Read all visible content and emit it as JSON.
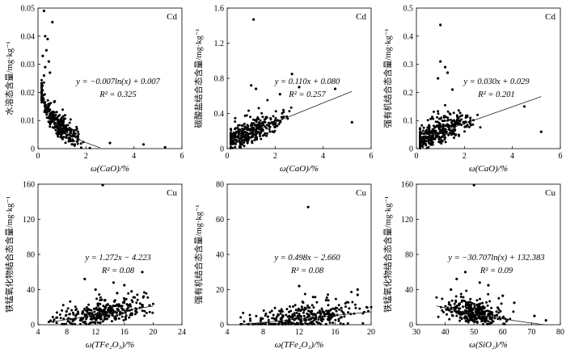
{
  "figure": {
    "rows": [
      {
        "label": "Cd",
        "ylabels": [
          "水溶态含量/mg·kg⁻¹",
          "碳酸盐结合态含量/mg·kg⁻¹",
          "强有机结合态含量/mg·kg⁻¹"
        ]
      },
      {
        "label": "Cu",
        "ylabels": [
          "铁锰氧化物结合态含量/mg·kg⁻¹",
          "强有机结合态含量/mg·kg⁻¹",
          "铁锰氧化物结合态含量/mg·kg⁻¹"
        ]
      }
    ]
  },
  "chart_data": [
    {
      "type": "scatter",
      "element": "Cd",
      "ylabel": "水溶态含量/mg·kg⁻¹",
      "xlabel": "ω(CaO)/%",
      "xlim": [
        0,
        6
      ],
      "ylim": [
        0,
        0.05
      ],
      "xticks": [
        "0",
        "2",
        "4",
        "6"
      ],
      "yticks": [
        "0",
        "0.01",
        "0.02",
        "0.03",
        "0.04",
        "0.05"
      ],
      "equation": "y = −0.007ln(x) + 0.007",
      "r2": "R² = 0.325",
      "fit": {
        "kind": "log",
        "a": -0.007,
        "b": 0.007
      },
      "cloud": {
        "x": [
          0.15,
          2.6
        ],
        "xMean": 0.8,
        "spread": 0.5,
        "n": 320,
        "seed": 11
      },
      "points": [
        [
          0.25,
          0.049
        ],
        [
          0.6,
          0.045
        ],
        [
          0.3,
          0.04
        ],
        [
          0.4,
          0.039
        ],
        [
          0.35,
          0.035
        ],
        [
          0.2,
          0.033
        ],
        [
          0.45,
          0.031
        ],
        [
          0.3,
          0.029
        ],
        [
          0.5,
          0.027
        ],
        [
          0.25,
          0.026
        ],
        [
          4.4,
          0.0015
        ],
        [
          5.3,
          0.0005
        ],
        [
          3.0,
          0.002
        ]
      ]
    },
    {
      "type": "scatter",
      "element": "Cd",
      "ylabel": "碳酸盐结合态含量/mg·kg⁻¹",
      "xlabel": "ω(CaO)/%",
      "xlim": [
        0,
        6
      ],
      "ylim": [
        0,
        1.6
      ],
      "xticks": [
        "0",
        "2",
        "4",
        "6"
      ],
      "yticks": [
        "0",
        "0.4",
        "0.8",
        "1.2",
        "1.6"
      ],
      "equation": "y = 0.110x + 0.080",
      "r2": "R² = 0.257",
      "fit": {
        "kind": "linear",
        "a": 0.11,
        "b": 0.08,
        "range": [
          0.1,
          5.2
        ]
      },
      "cloud": {
        "x": [
          0.15,
          3.0
        ],
        "xMean": 1.0,
        "spread": 0.6,
        "n": 320,
        "seed": 23
      },
      "points": [
        [
          1.1,
          1.47
        ],
        [
          2.7,
          0.85
        ],
        [
          3.0,
          0.7
        ],
        [
          4.5,
          0.68
        ],
        [
          5.2,
          0.3
        ],
        [
          1.0,
          0.72
        ],
        [
          1.2,
          0.68
        ],
        [
          2.2,
          0.62
        ]
      ]
    },
    {
      "type": "scatter",
      "element": "Cd",
      "ylabel": "强有机结合态含量/mg·kg⁻¹",
      "xlabel": "ω(CaO)/%",
      "xlim": [
        0,
        6
      ],
      "ylim": [
        0,
        0.5
      ],
      "xticks": [
        "0",
        "2",
        "4",
        "6"
      ],
      "yticks": [
        "0",
        "0.1",
        "0.2",
        "0.3",
        "0.4",
        "0.5"
      ],
      "equation": "y = 0.030x + 0.029",
      "r2": "R² = 0.201",
      "fit": {
        "kind": "linear",
        "a": 0.03,
        "b": 0.029,
        "range": [
          0.1,
          5.2
        ]
      },
      "cloud": {
        "x": [
          0.15,
          3.0
        ],
        "xMean": 1.0,
        "spread": 0.6,
        "n": 320,
        "seed": 37
      },
      "points": [
        [
          1.0,
          0.44
        ],
        [
          1.0,
          0.31
        ],
        [
          1.2,
          0.29
        ],
        [
          1.3,
          0.27
        ],
        [
          4.5,
          0.15
        ],
        [
          5.2,
          0.06
        ],
        [
          0.9,
          0.25
        ],
        [
          1.5,
          0.21
        ]
      ]
    },
    {
      "type": "scatter",
      "element": "Cu",
      "ylabel": "铁锰氧化物结合态含量/mg·kg⁻¹",
      "xlabel": "ω(TFe₂O₃)/%",
      "xlim": [
        4,
        24
      ],
      "ylim": [
        0,
        160
      ],
      "xticks": [
        "4",
        "8",
        "12",
        "16",
        "20",
        "24"
      ],
      "yticks": [
        "0",
        "40",
        "80",
        "120",
        "160"
      ],
      "equation": "y = 1.272x − 4.223",
      "r2": "R² = 0.08",
      "fit": {
        "kind": "linear",
        "a": 1.272,
        "b": -4.223,
        "range": [
          5.5,
          20
        ]
      },
      "cloud": {
        "x": [
          5.5,
          20
        ],
        "xMean": 13,
        "spread": 3,
        "n": 320,
        "seed": 51
      },
      "points": [
        [
          13,
          159
        ],
        [
          10.5,
          52
        ],
        [
          18.5,
          60
        ],
        [
          14.5,
          48
        ],
        [
          16,
          45
        ],
        [
          12,
          40
        ],
        [
          17,
          38
        ],
        [
          15,
          36
        ],
        [
          19.5,
          22
        ]
      ]
    },
    {
      "type": "scatter",
      "element": "Cu",
      "ylabel": "强有机结合态含量/mg·kg⁻¹",
      "xlabel": "ω(TFe₂O₃)/%",
      "xlim": [
        4,
        20
      ],
      "ylim": [
        0,
        80
      ],
      "xticks": [
        "4",
        "8",
        "12",
        "16",
        "20"
      ],
      "yticks": [
        "0",
        "20",
        "40",
        "60",
        "80"
      ],
      "equation": "y = 0.498x − 2.660",
      "r2": "R² = 0.08",
      "fit": {
        "kind": "linear",
        "a": 0.498,
        "b": -2.66,
        "range": [
          5.5,
          20
        ]
      },
      "cloud": {
        "x": [
          5.5,
          20
        ],
        "xMean": 13,
        "spread": 3,
        "n": 320,
        "seed": 67
      },
      "points": [
        [
          13,
          67
        ],
        [
          12,
          22
        ],
        [
          18.5,
          20
        ],
        [
          18.5,
          17
        ],
        [
          15,
          14
        ],
        [
          19.5,
          10
        ]
      ]
    },
    {
      "type": "scatter",
      "element": "Cu",
      "ylabel": "铁锰氧化物结合态含量/mg·kg⁻¹",
      "xlabel": "ω(SiO₂)/%",
      "xlim": [
        30,
        80
      ],
      "ylim": [
        0,
        160
      ],
      "xticks": [
        "30",
        "40",
        "50",
        "60",
        "70",
        "80"
      ],
      "yticks": [
        "0",
        "40",
        "80",
        "120",
        "160"
      ],
      "equation": "y = −30.707ln(x) + 132.383",
      "r2": "R² = 0.09",
      "fit": {
        "kind": "log",
        "a": -30.707,
        "b": 132.383,
        "range": [
          37,
          75
        ]
      },
      "cloud": {
        "x": [
          37,
          68
        ],
        "xMean": 50,
        "spread": 5,
        "n": 320,
        "seed": 83
      },
      "points": [
        [
          50,
          159
        ],
        [
          47,
          60
        ],
        [
          44,
          52
        ],
        [
          52,
          48
        ],
        [
          55,
          45
        ],
        [
          42,
          40
        ],
        [
          60,
          33
        ],
        [
          64,
          25
        ],
        [
          71,
          10
        ],
        [
          75,
          5
        ]
      ]
    }
  ]
}
